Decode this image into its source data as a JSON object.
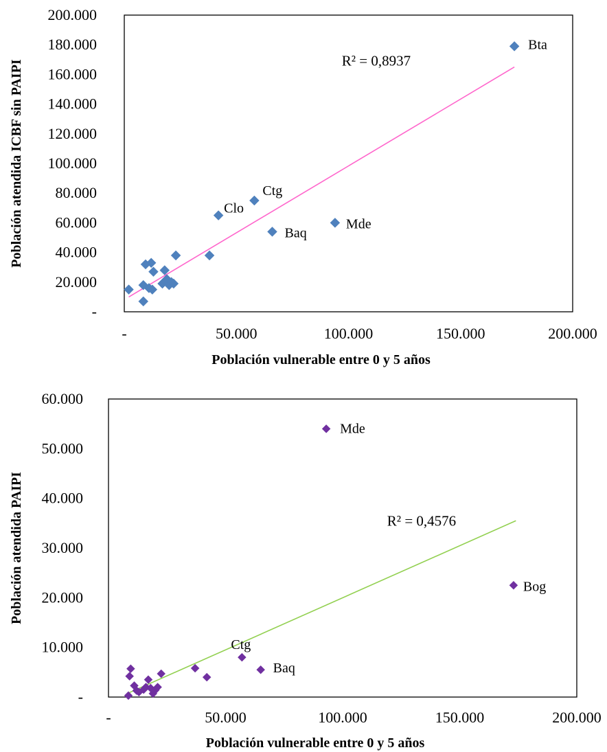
{
  "chart_data": [
    {
      "type": "scatter",
      "title": "",
      "xlabel": "Población vulnerable entre 0 y 5 años",
      "ylabel": "Población atendida ICBF sin PAIPI",
      "xlim": [
        0,
        200000
      ],
      "ylim": [
        0,
        200000
      ],
      "x_ticks": [
        0,
        50000,
        100000,
        150000,
        200000
      ],
      "x_tick_labels": [
        "-",
        "50.000",
        "100.000",
        "150.000",
        "200.000"
      ],
      "y_ticks": [
        0,
        20000,
        40000,
        60000,
        80000,
        100000,
        120000,
        140000,
        160000,
        180000,
        200000
      ],
      "y_tick_labels": [
        "-",
        "20.000",
        "40.000",
        "60.000",
        "80.000",
        "100.000",
        "120.000",
        "140.000",
        "160.000",
        "180.000",
        "200.000"
      ],
      "marker": "diamond",
      "marker_color": "#4f81bd",
      "trendline": {
        "color": "#ff66cc",
        "from": [
          2000,
          10000
        ],
        "to": [
          174000,
          165000
        ],
        "r2_label": "R² = 0,8937",
        "r2_at": [
          97000,
          166000
        ]
      },
      "points": [
        {
          "x": 174000,
          "y": 179000,
          "label": "Bta"
        },
        {
          "x": 94000,
          "y": 60000,
          "label": "Mde"
        },
        {
          "x": 66000,
          "y": 54000,
          "label": "Baq"
        },
        {
          "x": 58000,
          "y": 75000,
          "label": "Ctg"
        },
        {
          "x": 42000,
          "y": 65000,
          "label": "Clo"
        },
        {
          "x": 38000,
          "y": 38000
        },
        {
          "x": 23000,
          "y": 38000
        },
        {
          "x": 2000,
          "y": 15000
        },
        {
          "x": 8500,
          "y": 7000
        },
        {
          "x": 8500,
          "y": 18000
        },
        {
          "x": 9500,
          "y": 32000
        },
        {
          "x": 12000,
          "y": 33000
        },
        {
          "x": 13000,
          "y": 27000
        },
        {
          "x": 11000,
          "y": 16000
        },
        {
          "x": 12500,
          "y": 15000
        },
        {
          "x": 17000,
          "y": 19000
        },
        {
          "x": 18000,
          "y": 28000
        },
        {
          "x": 19000,
          "y": 22000
        },
        {
          "x": 20000,
          "y": 18000
        },
        {
          "x": 21000,
          "y": 20000
        },
        {
          "x": 22000,
          "y": 19000
        }
      ]
    },
    {
      "type": "scatter",
      "title": "",
      "xlabel": "Población vulnerable entre 0 y 5 años",
      "ylabel": "Población atendida PAIPI",
      "xlim": [
        0,
        200000
      ],
      "ylim": [
        0,
        60000
      ],
      "x_ticks": [
        0,
        50000,
        100000,
        150000,
        200000
      ],
      "x_tick_labels": [
        "-",
        "50.000",
        "100.000",
        "150.000",
        "200.000"
      ],
      "y_ticks": [
        0,
        10000,
        20000,
        30000,
        40000,
        50000,
        60000
      ],
      "y_tick_labels": [
        "-",
        "10.000",
        "20.000",
        "30.000",
        "40.000",
        "50.000",
        "60.000"
      ],
      "marker": "diamond",
      "marker_color": "#7030a0",
      "trendline": {
        "color": "#92d050",
        "from": [
          8000,
          700
        ],
        "to": [
          174000,
          35500
        ],
        "r2_label": "R² = 0,4576",
        "r2_at": [
          119000,
          34500
        ]
      },
      "points": [
        {
          "x": 93000,
          "y": 54000,
          "label": "Mde"
        },
        {
          "x": 173000,
          "y": 22500,
          "label": "Bog"
        },
        {
          "x": 57000,
          "y": 8000,
          "label": "Ctg"
        },
        {
          "x": 65000,
          "y": 5500,
          "label": "Baq"
        },
        {
          "x": 37000,
          "y": 5800
        },
        {
          "x": 42000,
          "y": 4000
        },
        {
          "x": 22500,
          "y": 4700
        },
        {
          "x": 8500,
          "y": 300
        },
        {
          "x": 9000,
          "y": 4200
        },
        {
          "x": 9500,
          "y": 5700
        },
        {
          "x": 11000,
          "y": 2300
        },
        {
          "x": 12000,
          "y": 1300
        },
        {
          "x": 13000,
          "y": 1000
        },
        {
          "x": 15000,
          "y": 1500
        },
        {
          "x": 16000,
          "y": 2000
        },
        {
          "x": 17000,
          "y": 3500
        },
        {
          "x": 18000,
          "y": 1800
        },
        {
          "x": 19000,
          "y": 700
        },
        {
          "x": 20000,
          "y": 1400
        },
        {
          "x": 21000,
          "y": 2000
        }
      ]
    }
  ]
}
